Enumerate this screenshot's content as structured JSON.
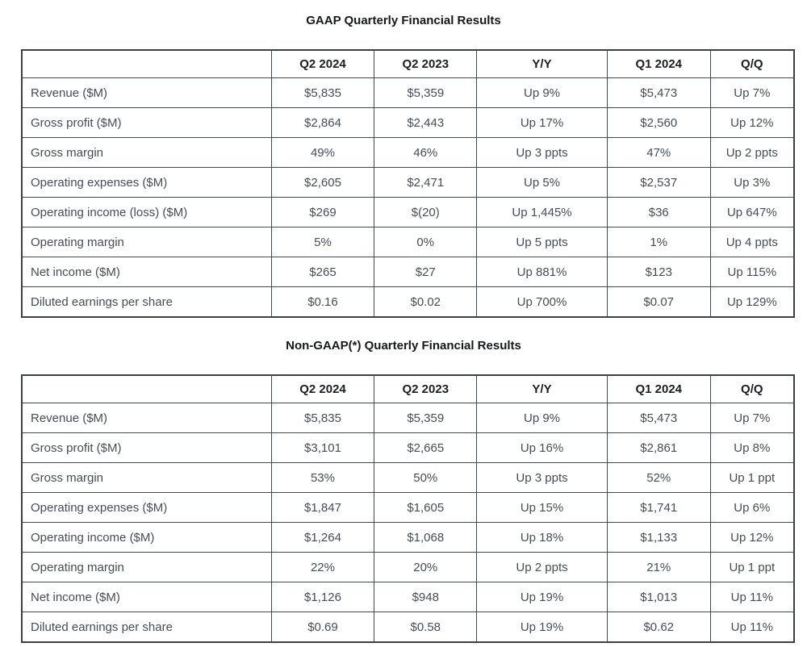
{
  "tables": [
    {
      "id": "gaap-results-table",
      "title": "GAAP Quarterly Financial Results",
      "columns": [
        "",
        "Q2 2024",
        "Q2 2023",
        "Y/Y",
        "Q1 2024",
        "Q/Q"
      ],
      "rows": [
        [
          "Revenue ($M)",
          "$5,835",
          "$5,359",
          "Up 9%",
          "$5,473",
          "Up 7%"
        ],
        [
          "Gross profit ($M)",
          "$2,864",
          "$2,443",
          "Up 17%",
          "$2,560",
          "Up 12%"
        ],
        [
          "Gross margin",
          "49%",
          "46%",
          "Up 3 ppts",
          "47%",
          "Up 2 ppts"
        ],
        [
          "Operating expenses ($M)",
          "$2,605",
          "$2,471",
          "Up 5%",
          "$2,537",
          "Up 3%"
        ],
        [
          "Operating income (loss) ($M)",
          "$269",
          "$(20)",
          "Up 1,445%",
          "$36",
          "Up 647%"
        ],
        [
          "Operating margin",
          "5%",
          "0%",
          "Up 5 ppts",
          "1%",
          "Up 4 ppts"
        ],
        [
          "Net income ($M)",
          "$265",
          "$27",
          "Up 881%",
          "$123",
          "Up 115%"
        ],
        [
          "Diluted earnings per share",
          "$0.16",
          "$0.02",
          "Up 700%",
          "$0.07",
          "Up 129%"
        ]
      ]
    },
    {
      "id": "non-gaap-results-table",
      "title": "Non-GAAP(*) Quarterly Financial Results",
      "columns": [
        "",
        "Q2 2024",
        "Q2 2023",
        "Y/Y",
        "Q1 2024",
        "Q/Q"
      ],
      "rows": [
        [
          "Revenue ($M)",
          "$5,835",
          "$5,359",
          "Up 9%",
          "$5,473",
          "Up 7%"
        ],
        [
          "Gross profit ($M)",
          "$3,101",
          "$2,665",
          "Up 16%",
          "$2,861",
          "Up 8%"
        ],
        [
          "Gross margin",
          "53%",
          "50%",
          "Up 3 ppts",
          "52%",
          "Up 1 ppt"
        ],
        [
          "Operating expenses ($M)",
          "$1,847",
          "$1,605",
          "Up 15%",
          "$1,741",
          "Up 6%"
        ],
        [
          "Operating income ($M)",
          "$1,264",
          "$1,068",
          "Up 18%",
          "$1,133",
          "Up 12%"
        ],
        [
          "Operating margin",
          "22%",
          "20%",
          "Up 2 ppts",
          "21%",
          "Up 1 ppt"
        ],
        [
          "Net income ($M)",
          "$1,126",
          "$948",
          "Up 19%",
          "$1,013",
          "Up 11%"
        ],
        [
          "Diluted earnings per share",
          "$0.69",
          "$0.58",
          "Up 19%",
          "$0.62",
          "Up 11%"
        ]
      ]
    }
  ],
  "column_widths_pct": [
    32.3,
    13.35,
    13.25,
    16.9,
    13.35,
    10.85
  ],
  "colors": {
    "body_text": "#464d55",
    "heading_text": "#17181a",
    "border": "#43484d",
    "background": "#ffffff"
  }
}
